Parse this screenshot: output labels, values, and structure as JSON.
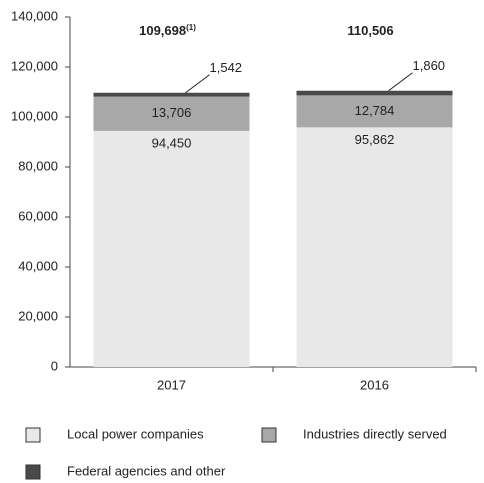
{
  "chart_data": {
    "type": "stacked-bar",
    "categories": [
      "2017",
      "2016"
    ],
    "series": [
      {
        "name": "Local power companies",
        "color": "#e8e8e8",
        "values": [
          94450,
          95862
        ],
        "value_labels": [
          "94,450",
          "95,862"
        ]
      },
      {
        "name": "Industries directly served",
        "color": "#a8a8a8",
        "values": [
          13706,
          12784
        ],
        "value_labels": [
          "13,706",
          "12,784"
        ]
      },
      {
        "name": "Federal agencies and other",
        "color": "#4a4a4a",
        "values": [
          1542,
          1860
        ],
        "value_labels": [
          "1,542",
          "1,860"
        ]
      }
    ],
    "totals": [
      109698,
      110506
    ],
    "total_labels": [
      "109,698",
      "110,506"
    ],
    "total_notes": [
      "(1)",
      null
    ],
    "ylim": [
      0,
      140000
    ],
    "yticks": [
      0,
      {
        "value": 20000,
        "label": "20,000"
      },
      {
        "value": 40000,
        "label": "40,000"
      },
      {
        "value": 60000,
        "label": "60,000"
      },
      {
        "value": 80000,
        "label": "80,000"
      },
      {
        "value": 100000,
        "label": "100,000"
      },
      {
        "value": 120000,
        "label": "120,000"
      },
      {
        "value": 140000,
        "label": "140,000"
      }
    ],
    "grid": false
  }
}
